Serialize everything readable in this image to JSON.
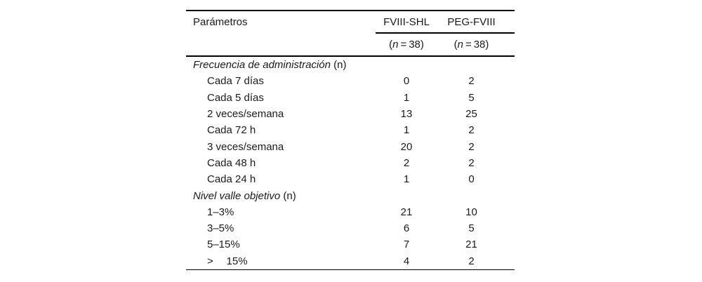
{
  "colors": {
    "background": "#ffffff",
    "text": "#1a1a1a",
    "rule": "#000000"
  },
  "table": {
    "header": {
      "param": "Parámetros",
      "cols": [
        {
          "name": "FVIII-SHL",
          "n_open": "(",
          "n_var": "n",
          "n_rest": " = 38)"
        },
        {
          "name": "PEG-FVIII",
          "n_open": "(",
          "n_var": "n",
          "n_rest": " = 38)"
        }
      ]
    },
    "rows": [
      {
        "type": "section",
        "italic": "Frecuencia de administración",
        "roman": " (n)",
        "c1": "",
        "c2": ""
      },
      {
        "type": "item",
        "label": "Cada 7 días",
        "c1": "0",
        "c2": "2"
      },
      {
        "type": "item",
        "label": "Cada 5 días",
        "c1": "1",
        "c2": "5"
      },
      {
        "type": "item",
        "label": "2 veces/semana",
        "c1": "13",
        "c2": "25"
      },
      {
        "type": "item",
        "label": "Cada 72 h",
        "c1": "1",
        "c2": "2"
      },
      {
        "type": "item",
        "label": "3 veces/semana",
        "c1": "20",
        "c2": "2"
      },
      {
        "type": "item",
        "label": "Cada 48 h",
        "c1": "2",
        "c2": "2"
      },
      {
        "type": "item",
        "label": "Cada 24 h",
        "c1": "1",
        "c2": "0"
      },
      {
        "type": "section",
        "italic": "Nivel valle objetivo",
        "roman": " (n)",
        "c1": "",
        "c2": ""
      },
      {
        "type": "item",
        "label": "1–3%",
        "c1": "21",
        "c2": "10"
      },
      {
        "type": "item",
        "label": "3–5%",
        "c1": "6",
        "c2": "5"
      },
      {
        "type": "item",
        "label": "5–15%",
        "c1": "7",
        "c2": "21"
      },
      {
        "type": "item",
        "label": ">  15%",
        "c1": "4",
        "c2": "2"
      }
    ]
  }
}
